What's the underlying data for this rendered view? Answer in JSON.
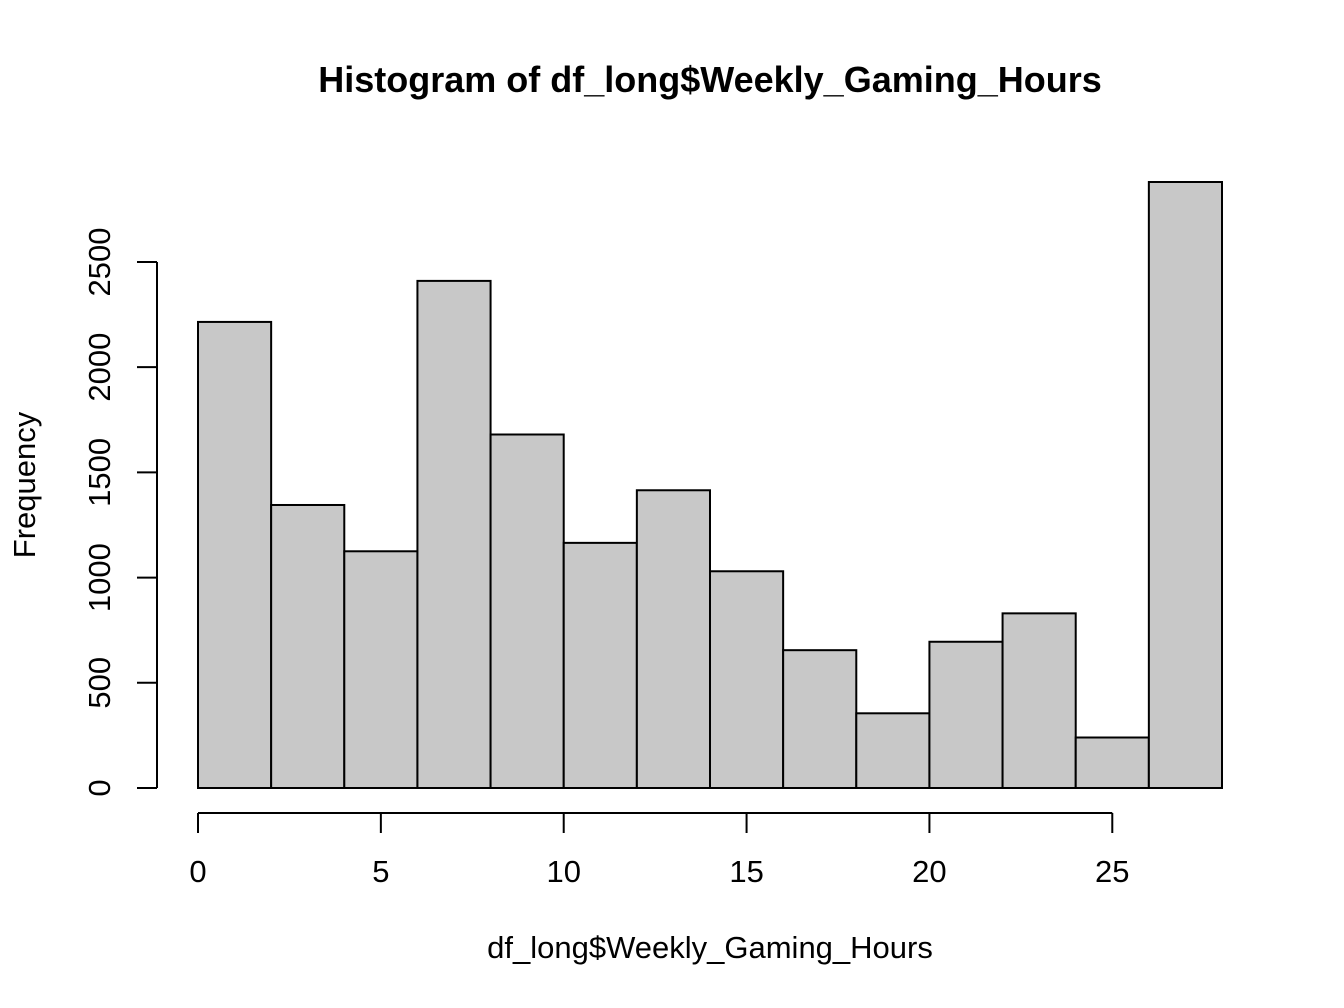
{
  "chart_data": {
    "type": "bar",
    "title": "Histogram of df_long$Weekly_Gaming_Hours",
    "xlabel": "df_long$Weekly_Gaming_Hours",
    "ylabel": "Frequency",
    "bin_edges": [
      0,
      2,
      4,
      6,
      8,
      10,
      12,
      14,
      16,
      18,
      20,
      22,
      24,
      26,
      28
    ],
    "values": [
      2215,
      1345,
      1125,
      2410,
      1680,
      1165,
      1415,
      1030,
      655,
      355,
      695,
      830,
      240,
      2880
    ],
    "xlim": [
      0,
      28
    ],
    "ylim": [
      0,
      2880
    ],
    "x_ticks": [
      0,
      5,
      10,
      15,
      20,
      25
    ],
    "y_ticks": [
      0,
      500,
      1000,
      1500,
      2000,
      2500
    ],
    "bar_color": "#c8c8c8",
    "grid": false
  }
}
